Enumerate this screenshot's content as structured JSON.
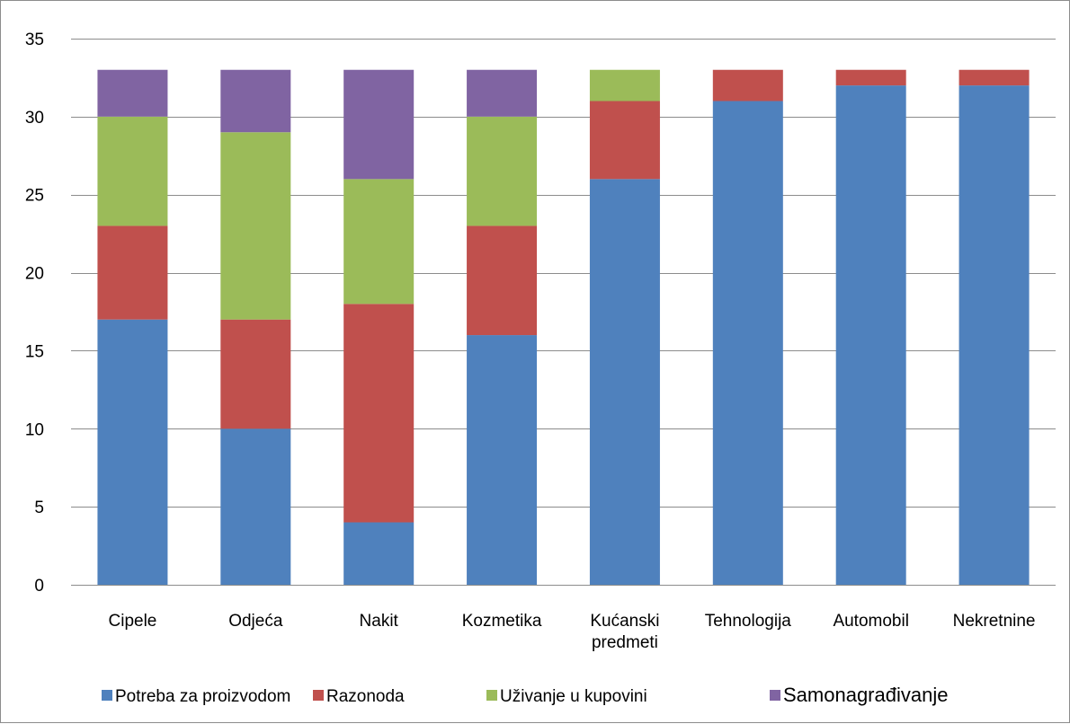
{
  "chart_data": {
    "type": "bar",
    "stacked": true,
    "title": "",
    "xlabel": "",
    "ylabel": "",
    "ylim": [
      0,
      35
    ],
    "yticks": [
      0,
      5,
      10,
      15,
      20,
      25,
      30,
      35
    ],
    "grid": true,
    "legend_position": "bottom",
    "categories": [
      [
        "Cipele"
      ],
      [
        "Odjeća"
      ],
      [
        "Nakit"
      ],
      [
        "Kozmetika"
      ],
      [
        "Kućanski",
        "predmeti"
      ],
      [
        "Tehnologija"
      ],
      [
        "Automobil"
      ],
      [
        "Nekretnine"
      ]
    ],
    "series": [
      {
        "name": "Potreba za proizvodom",
        "color": "#4f81bd",
        "values": [
          17,
          10,
          4,
          16,
          26,
          31,
          32,
          32
        ]
      },
      {
        "name": "Razonoda",
        "color": "#c0504d",
        "values": [
          6,
          7,
          14,
          7,
          5,
          2,
          1,
          1
        ]
      },
      {
        "name": "Uživanje u kupovini",
        "color": "#9bbb59",
        "values": [
          7,
          12,
          8,
          7,
          2,
          0,
          0,
          0
        ]
      },
      {
        "name": "Samonagrađivanje",
        "color": "#8064a2",
        "values": [
          3,
          4,
          7,
          3,
          0,
          0,
          0,
          0
        ]
      }
    ]
  }
}
